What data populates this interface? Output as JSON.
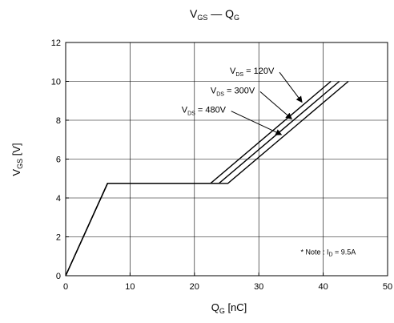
{
  "chart_data": {
    "type": "line",
    "title": {
      "main": "V",
      "sub": "GS",
      "dash": " — ",
      "main2": "Q",
      "sub2": "G"
    },
    "xlabel": {
      "main": "Q",
      "sub": "G",
      "unit": " [nC]"
    },
    "ylabel": {
      "main": "V",
      "sub": "GS",
      "unit": " [V]"
    },
    "xlim": [
      0,
      50
    ],
    "ylim": [
      0,
      12
    ],
    "xticks": [
      0,
      10,
      20,
      30,
      40,
      50
    ],
    "yticks": [
      0,
      2,
      4,
      6,
      8,
      10,
      12
    ],
    "grid": true,
    "series": [
      {
        "name": {
          "main": "V",
          "sub": "DS",
          "rest": " = 120V"
        },
        "points": [
          [
            0,
            0
          ],
          [
            6.5,
            4.75
          ],
          [
            22.5,
            4.75
          ],
          [
            41.2,
            10
          ]
        ]
      },
      {
        "name": {
          "main": "V",
          "sub": "DS",
          "rest": " = 300V"
        },
        "points": [
          [
            0,
            0
          ],
          [
            6.5,
            4.75
          ],
          [
            23.8,
            4.75
          ],
          [
            42.5,
            10
          ]
        ]
      },
      {
        "name": {
          "main": "V",
          "sub": "DS",
          "rest": " = 480V"
        },
        "points": [
          [
            0,
            0
          ],
          [
            6.5,
            4.75
          ],
          [
            25.2,
            4.75
          ],
          [
            43.9,
            10
          ]
        ]
      }
    ],
    "annotations": [
      {
        "series": 0,
        "label_at": [
          25.5,
          10.55
        ],
        "arrow_to": [
          36.7,
          8.93
        ]
      },
      {
        "series": 1,
        "label_at": [
          22.5,
          9.55
        ],
        "arrow_to": [
          35.1,
          8.07
        ]
      },
      {
        "series": 2,
        "label_at": [
          18,
          8.55
        ],
        "arrow_to": [
          33.5,
          7.26
        ]
      }
    ],
    "note": {
      "prefix": "* Note : I",
      "sub": "D",
      "rest": " = 9.5A",
      "at": [
        36.5,
        1.1
      ]
    }
  }
}
